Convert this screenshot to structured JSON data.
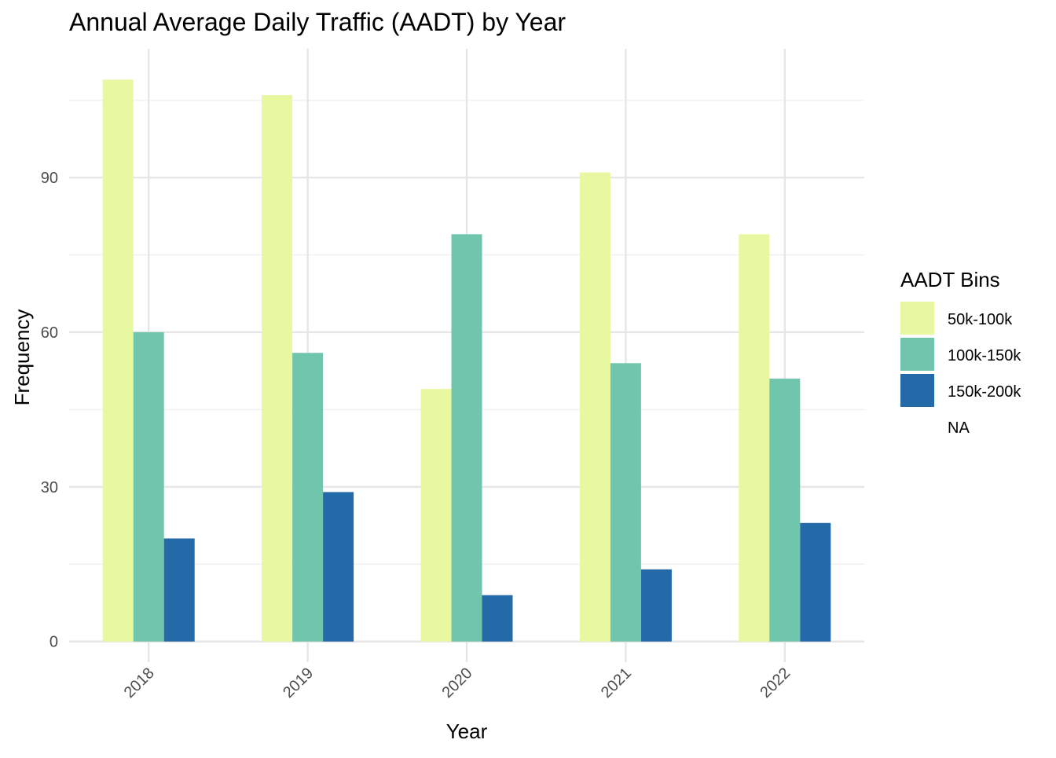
{
  "chart_data": {
    "type": "bar",
    "title": "Annual Average Daily Traffic (AADT) by Year",
    "xlabel": "Year",
    "ylabel": "Frequency",
    "categories": [
      "2018",
      "2019",
      "2020",
      "2021",
      "2022"
    ],
    "y_ticks": [
      0,
      30,
      60,
      90
    ],
    "ylim": [
      -4,
      115
    ],
    "grid": true,
    "series": [
      {
        "name": "50k-100k",
        "color": "#e8f8a0",
        "values": [
          109,
          106,
          49,
          91,
          79
        ]
      },
      {
        "name": "100k-150k",
        "color": "#70c5ad",
        "values": [
          60,
          56,
          79,
          54,
          51
        ]
      },
      {
        "name": "150k-200k",
        "color": "#256aa8",
        "values": [
          20,
          29,
          9,
          14,
          23
        ]
      }
    ],
    "legend": {
      "title": "AADT Bins",
      "position": "right",
      "items": [
        "50k-100k",
        "100k-150k",
        "150k-200k",
        "NA"
      ]
    }
  }
}
